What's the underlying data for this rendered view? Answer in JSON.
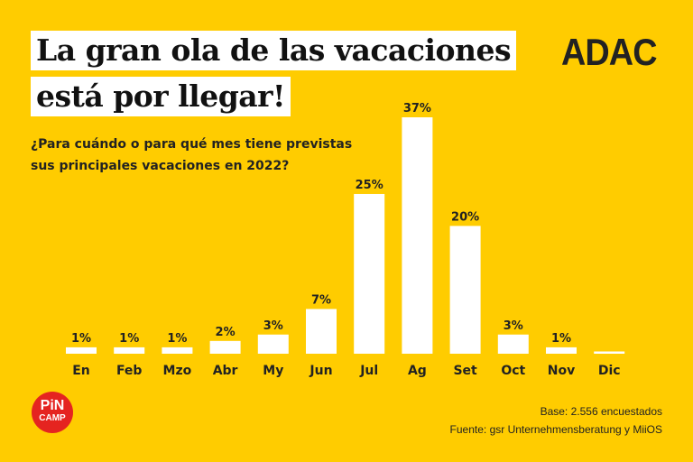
{
  "header": {
    "title_line1": "La gran ola de las vacaciones",
    "title_line2": "está por llegar!",
    "brand": "ADAC"
  },
  "chart_data": {
    "type": "bar",
    "title": "¿Para cuándo o para qué mes tiene previstas sus principales vacaciones en 2022?",
    "subtitle_line1": "¿Para cuándo o para qué mes tiene previstas",
    "subtitle_line2": "sus principales vacaciones en 2022?",
    "categories": [
      "En",
      "Feb",
      "Mzo",
      "Abr",
      "My",
      "Jun",
      "Jul",
      "Ag",
      "Set",
      "Oct",
      "Nov",
      "Dic"
    ],
    "values": [
      1,
      1,
      1,
      2,
      3,
      7,
      25,
      37,
      20,
      3,
      1,
      0
    ],
    "labels": [
      "1%",
      "1%",
      "1%",
      "2%",
      "3%",
      "7%",
      "25%",
      "37%",
      "20%",
      "3%",
      "1%",
      ""
    ],
    "unit": "%",
    "ylim": [
      0,
      37
    ],
    "grid": false,
    "bar_color": "#ffffff"
  },
  "footer": {
    "base": "Base: 2.556 encuestados",
    "source": "Fuente: gsr Unternehmensberatung y MiiOS",
    "logo_line1": "PiN",
    "logo_line2": "CAMP"
  }
}
